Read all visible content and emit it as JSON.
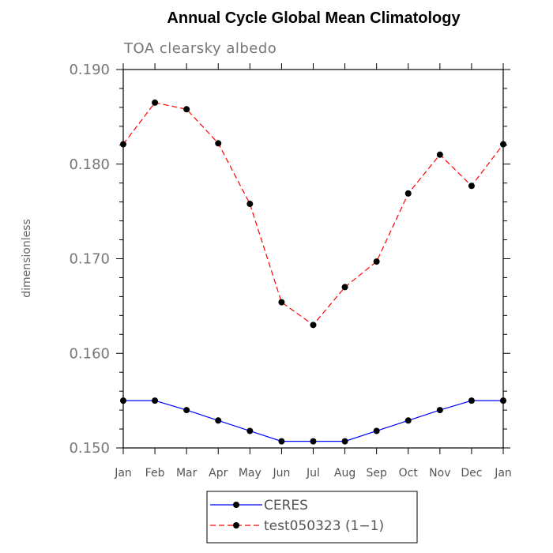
{
  "chart_data": {
    "type": "line",
    "title": "Annual Cycle Global Mean Climatology",
    "subtitle": "TOA clearsky albedo",
    "xlabel": "",
    "ylabel": "dimensionless",
    "categories": [
      "Jan",
      "Feb",
      "Mar",
      "Apr",
      "May",
      "Jun",
      "Jul",
      "Aug",
      "Sep",
      "Oct",
      "Nov",
      "Dec",
      "Jan"
    ],
    "ylim": [
      0.15,
      0.19
    ],
    "yticks": [
      "0.150",
      "0.160",
      "0.170",
      "0.180",
      "0.190"
    ],
    "ytick_values": [
      0.15,
      0.16,
      0.17,
      0.18,
      0.19
    ],
    "legend_position": "bottom-center",
    "series": [
      {
        "name": "CERES",
        "color": "#0000ff",
        "style": "solid",
        "values": [
          0.155,
          0.155,
          0.154,
          0.1529,
          0.1518,
          0.1507,
          0.1507,
          0.1507,
          0.1518,
          0.1529,
          0.154,
          0.155,
          0.155
        ]
      },
      {
        "name": "test050323 (1−1)",
        "color": "#ff0000",
        "style": "dashed",
        "values": [
          0.1821,
          0.1865,
          0.1858,
          0.1822,
          0.1758,
          0.1654,
          0.163,
          0.167,
          0.1697,
          0.1769,
          0.181,
          0.1777,
          0.1821
        ]
      }
    ]
  }
}
